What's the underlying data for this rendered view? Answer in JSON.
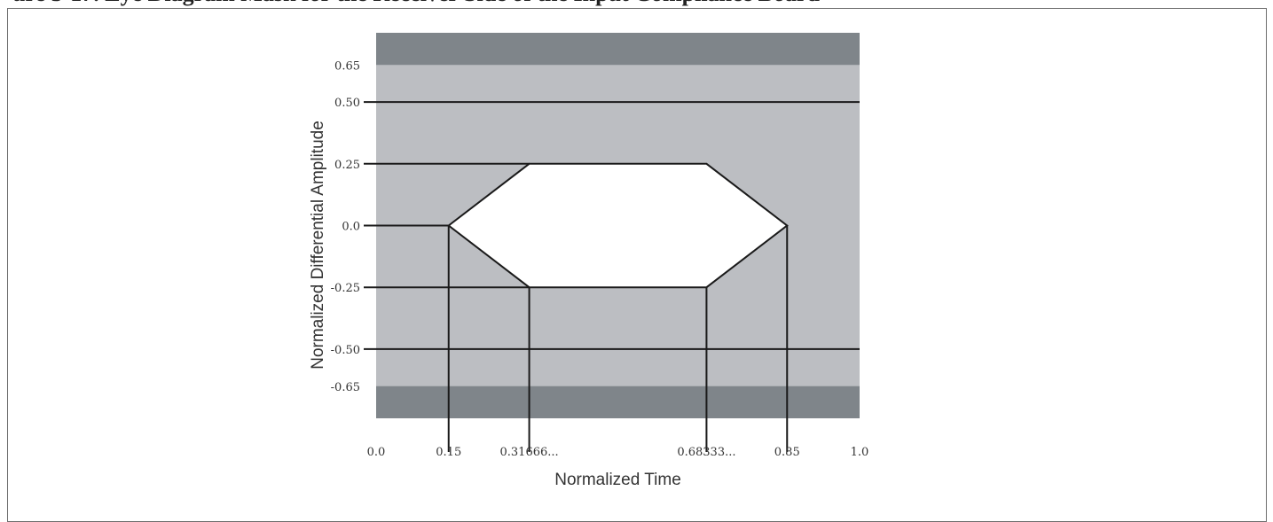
{
  "caption": "ure 3-17. Eye Diagram Mask for the Receiver Side of the Input Compliance Board",
  "chart_data": {
    "type": "eye-mask",
    "xlabel": "Normalized Time",
    "ylabel": "Normalized Differential Amplitude",
    "xlim": [
      0.0,
      1.0
    ],
    "ylim": [
      -0.78,
      0.78
    ],
    "x_ticks": [
      {
        "value": 0.0,
        "label": "0.0"
      },
      {
        "value": 0.15,
        "label": "0.15"
      },
      {
        "value": 0.3166667,
        "label": "0.31666..."
      },
      {
        "value": 0.6833333,
        "label": "0.68333..."
      },
      {
        "value": 0.85,
        "label": "0.85"
      },
      {
        "value": 1.0,
        "label": "1.0"
      }
    ],
    "y_ticks": [
      {
        "value": 0.65,
        "label": "0.65"
      },
      {
        "value": 0.5,
        "label": "0.50"
      },
      {
        "value": 0.25,
        "label": "0.25"
      },
      {
        "value": 0.0,
        "label": "0.0"
      },
      {
        "value": -0.25,
        "label": "-0.25"
      },
      {
        "value": -0.5,
        "label": "-0.50"
      },
      {
        "value": -0.65,
        "label": "-0.65"
      }
    ],
    "upper_forbidden_region": [
      0.65,
      0.78
    ],
    "lower_forbidden_region": [
      -0.78,
      -0.65
    ],
    "eye_opening": [
      [
        0.15,
        0.0
      ],
      [
        0.3166667,
        0.25
      ],
      [
        0.6833333,
        0.25
      ],
      [
        0.85,
        0.0
      ],
      [
        0.6833333,
        -0.25
      ],
      [
        0.3166667,
        -0.25
      ]
    ],
    "horizontal_reference_lines": [
      0.5,
      -0.5
    ],
    "colors": {
      "outer_region": "#7f858a",
      "inner_region": "#bcbec2",
      "eye_opening": "#ffffff",
      "lines": "#1a1a1a"
    }
  }
}
